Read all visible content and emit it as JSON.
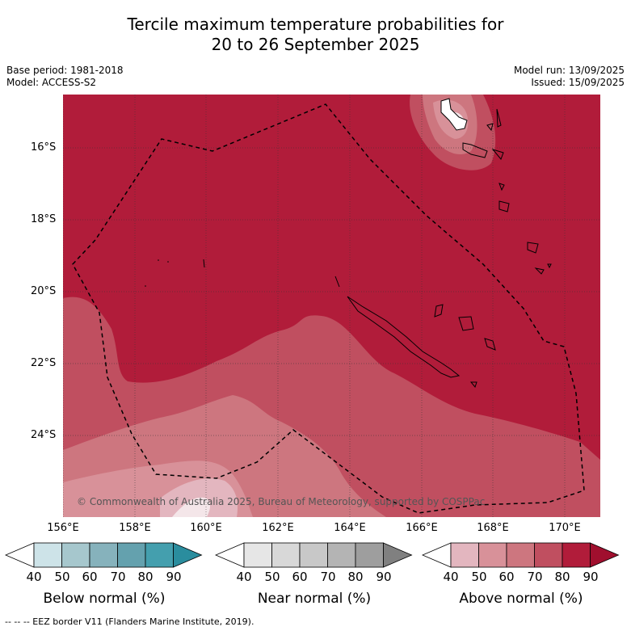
{
  "title_line1": "Tercile maximum temperature probabilities for",
  "title_line2": "20 to 26 September 2025",
  "meta": {
    "base_period": "Base period: 1981-2018",
    "model": "Model: ACCESS-S2",
    "model_run": "Model run: 13/09/2025",
    "issued": "Issued: 15/09/2025"
  },
  "map": {
    "lat_labels": [
      "16°S",
      "18°S",
      "20°S",
      "22°S",
      "24°S"
    ],
    "lon_labels": [
      "156°E",
      "158°E",
      "160°E",
      "162°E",
      "164°E",
      "166°E",
      "168°E",
      "170°E"
    ],
    "copyright": "© Commonwealth of Australia 2025, Bureau of Meteorology, supported by COSPPac",
    "dominant_category": "Above normal",
    "dominant_color": "#b11c3a"
  },
  "colorbars": [
    {
      "label": "Below normal (%)",
      "ticks": [
        "40",
        "50",
        "60",
        "70",
        "80",
        "90"
      ],
      "colors": [
        "#ffffff",
        "#cde3e8",
        "#a6c7cd",
        "#86b2bc",
        "#64a1ae",
        "#449fae",
        "#2a8d9e"
      ]
    },
    {
      "label": "Near normal (%)",
      "ticks": [
        "40",
        "50",
        "60",
        "70",
        "80",
        "90"
      ],
      "colors": [
        "#ffffff",
        "#e6e6e6",
        "#d8d8d8",
        "#c8c8c8",
        "#b4b4b4",
        "#9e9e9e",
        "#808080"
      ]
    },
    {
      "label": "Above normal (%)",
      "ticks": [
        "40",
        "50",
        "60",
        "70",
        "80",
        "90"
      ],
      "colors": [
        "#ffffff",
        "#e3b6bf",
        "#d89199",
        "#cd767f",
        "#c04f60",
        "#b11c3a",
        "#a00f2e"
      ]
    }
  ],
  "footnote": "--  --  -- EEZ border V11 (Flanders Marine Institute, 2019)."
}
